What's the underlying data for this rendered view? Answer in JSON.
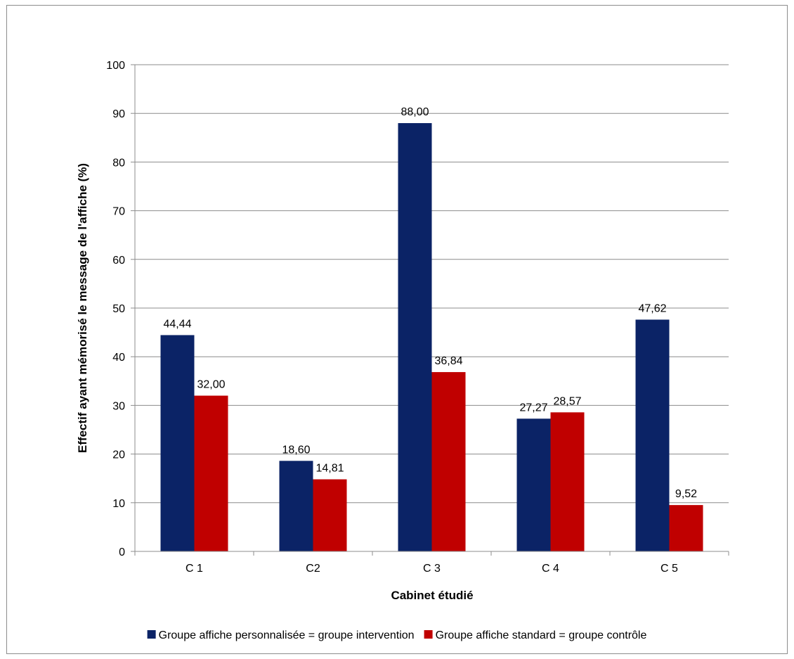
{
  "chart_data": {
    "type": "bar",
    "title": "",
    "xlabel": "Cabinet étudié",
    "ylabel": "Effectif ayant mémorisé le message de l'affiche (%)",
    "categories": [
      "C 1",
      "C2",
      "C 3",
      "C 4",
      "C 5"
    ],
    "ylim": [
      0,
      100
    ],
    "yticks": [
      "0",
      "10",
      "20",
      "30",
      "40",
      "50",
      "60",
      "70",
      "80",
      "90",
      "100"
    ],
    "grid": true,
    "legend_position": "bottom",
    "series": [
      {
        "name": "Groupe affiche personnalisée = groupe intervention",
        "color": "#0b2366",
        "values": [
          44.44,
          18.6,
          88.0,
          27.27,
          47.62
        ],
        "labels": [
          "44,44",
          "18,60",
          "88,00",
          "27,27",
          "47,62"
        ]
      },
      {
        "name": "Groupe affiche standard = groupe contrôle",
        "color": "#c00000",
        "values": [
          32.0,
          14.81,
          36.84,
          28.57,
          9.52
        ],
        "labels": [
          "32,00",
          "14,81",
          "36,84",
          "28,57",
          "9,52"
        ]
      }
    ]
  }
}
